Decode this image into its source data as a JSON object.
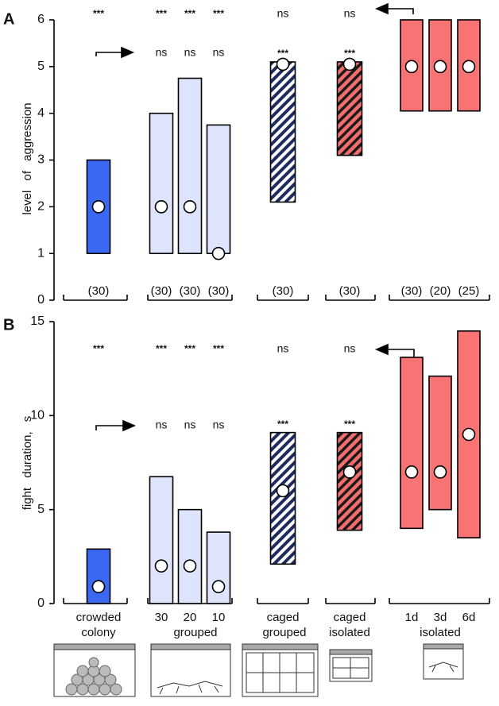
{
  "chart_data": [
    {
      "type": "range_bar",
      "panel_label": "A",
      "y_label": "level of aggression",
      "ylim": [
        0,
        6
      ],
      "yticks": [
        0,
        1,
        2,
        3,
        4,
        5,
        6
      ],
      "low": [
        1,
        1,
        1,
        1,
        2.1,
        3.1,
        4.05,
        4.05,
        4.05
      ],
      "high": [
        3,
        4,
        4.75,
        3.75,
        5.1,
        5.1,
        6,
        6,
        6
      ],
      "median": [
        2,
        2,
        2,
        1,
        5.05,
        5.05,
        5,
        5,
        5
      ],
      "colors": [
        "#3b68f2",
        "#dde4fb",
        "#dde4fb",
        "#dde4fb",
        "#ffffff",
        "#f36d6d",
        "#f87474",
        "#f87474",
        "#f87474"
      ],
      "hatch_colors": [
        null,
        null,
        null,
        null,
        "#1d2b5e",
        "#1a1a1a",
        null,
        null,
        null
      ],
      "n_labels": [
        "(30)",
        "(30)",
        "(30)",
        "(30)",
        "(30)",
        "(30)",
        "(30)",
        "(20)",
        "(25)"
      ],
      "sig_vs_colony": [
        "***",
        "***",
        "***",
        "***",
        "ns",
        "ns",
        null,
        null,
        null
      ],
      "sig_vs_isolated": [
        null,
        "ns",
        "ns",
        "ns",
        "***",
        "***",
        null,
        null,
        null
      ]
    },
    {
      "type": "range_bar",
      "panel_label": "B",
      "y_label": "fight duration, s",
      "ylim": [
        0,
        15
      ],
      "yticks": [
        0,
        5,
        10,
        15
      ],
      "low": [
        0,
        0,
        0,
        0,
        2.1,
        3.9,
        4,
        5,
        3.5
      ],
      "high": [
        2.9,
        6.75,
        5,
        3.8,
        9.1,
        9.1,
        13.1,
        12.1,
        14.5
      ],
      "median": [
        0.9,
        2,
        2,
        0.9,
        6,
        7,
        7,
        7,
        9
      ],
      "colors": [
        "#3b68f2",
        "#dde4fb",
        "#dde4fb",
        "#dde4fb",
        "#ffffff",
        "#f36d6d",
        "#f87474",
        "#f87474",
        "#f87474"
      ],
      "hatch_colors": [
        null,
        null,
        null,
        null,
        "#1d2b5e",
        "#1a1a1a",
        null,
        null,
        null
      ],
      "sig_vs_colony": [
        "***",
        "***",
        "***",
        "***",
        "ns",
        "ns",
        null,
        null,
        null
      ],
      "sig_vs_isolated": [
        null,
        "ns",
        "ns",
        "ns",
        "***",
        "***",
        null,
        null,
        null
      ],
      "categories": [
        "crowded",
        "30",
        "20",
        "10",
        "caged",
        "caged",
        "1d",
        "3d",
        "6d"
      ],
      "group_labels": [
        "colony",
        "grouped",
        "grouped",
        "isolated",
        "isolated"
      ]
    }
  ]
}
